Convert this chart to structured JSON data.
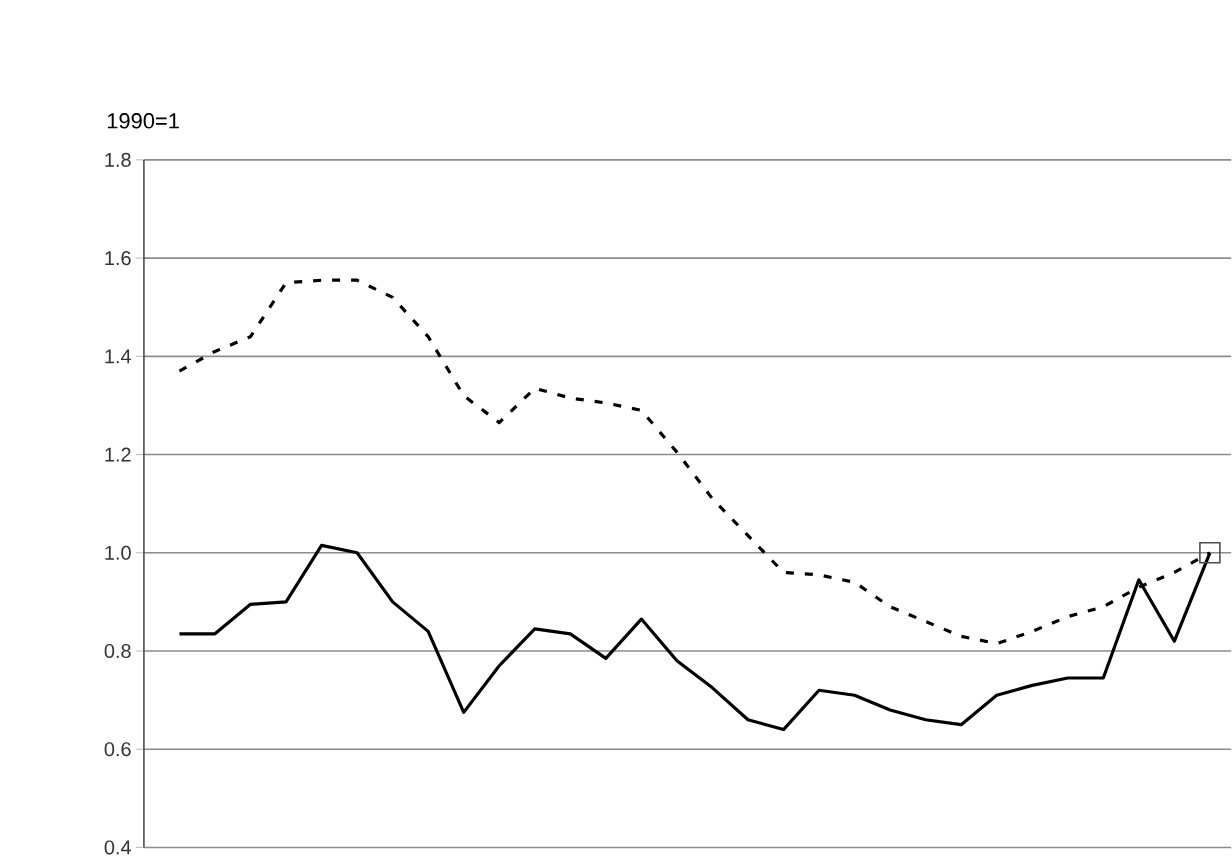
{
  "chart_data": {
    "type": "line",
    "ylabel": "1990=1",
    "ylim": [
      0.4,
      1.8
    ],
    "yticks": [
      {
        "value": 0.4,
        "label": "0.4"
      },
      {
        "value": 0.6,
        "label": "0.6"
      },
      {
        "value": 0.8,
        "label": "0.8"
      },
      {
        "value": 1.0,
        "label": "1.0"
      },
      {
        "value": 1.2,
        "label": "1.2"
      },
      {
        "value": 1.4,
        "label": "1.4"
      },
      {
        "value": 1.6,
        "label": "1.6"
      },
      {
        "value": 1.8,
        "label": "1.8"
      }
    ],
    "grid": "y",
    "tick_labels": "y",
    "categories": [
      null,
      null,
      null,
      null,
      null,
      null,
      null,
      null,
      null,
      null,
      null,
      null,
      null,
      null,
      null,
      null,
      null,
      null,
      null,
      null,
      null,
      null,
      null,
      null,
      null,
      null,
      null,
      null,
      null,
      null
    ],
    "series": [
      {
        "color": "#000000",
        "line_style": "dashed",
        "marker": "none",
        "values": [
          1.37,
          1.41,
          1.44,
          1.55,
          1.555,
          1.555,
          1.52,
          1.44,
          1.32,
          1.265,
          1.335,
          1.315,
          1.305,
          1.29,
          1.205,
          1.11,
          1.035,
          0.96,
          0.955,
          0.94,
          0.89,
          0.86,
          0.83,
          0.815,
          0.84,
          0.87,
          0.89,
          0.93,
          0.96,
          1.0
        ]
      },
      {
        "color": "#000000",
        "line_style": "solid",
        "marker": "none",
        "values": [
          0.835,
          0.835,
          0.895,
          0.9,
          1.015,
          1.0,
          0.9,
          0.84,
          0.675,
          0.77,
          0.845,
          0.835,
          0.785,
          0.865,
          0.78,
          0.725,
          0.66,
          0.64,
          0.72,
          0.71,
          0.68,
          0.66,
          0.65,
          0.71,
          0.73,
          0.745,
          0.745,
          0.945,
          0.82,
          1.0
        ]
      },
      {
        "type": "scatter",
        "color": "#4c4c4c",
        "marker": "square",
        "values": [
          null,
          null,
          null,
          null,
          null,
          null,
          null,
          null,
          null,
          null,
          null,
          null,
          null,
          null,
          null,
          null,
          null,
          null,
          null,
          null,
          null,
          null,
          null,
          null,
          null,
          null,
          null,
          null,
          null,
          1.0
        ]
      }
    ]
  }
}
